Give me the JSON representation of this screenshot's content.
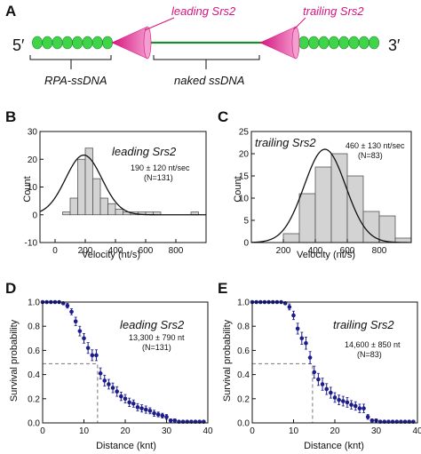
{
  "colors": {
    "rpa": "#3fd44a",
    "rpa_edge": "#1f8a2a",
    "motor": "#d6157f",
    "motor_light": "#f39fd0",
    "ssdna": "#1e8c2d",
    "bar_fill": "#d3d3d3",
    "marker": "#1c1c8c",
    "text": "#111111"
  },
  "panel_a": {
    "letter": "A",
    "five_prime": "5′",
    "three_prime": "3′",
    "leading_label": "leading Srs2",
    "trailing_label": "trailing Srs2",
    "rpa_label": "RPA-ssDNA",
    "naked_label": "naked ssDNA"
  },
  "chart_data": [
    {
      "id": "B",
      "letter": "B",
      "type": "bar",
      "xlabel": "Velocity (nt/s)",
      "ylabel": "Count",
      "xlim": [
        -100,
        1000
      ],
      "ylim": [
        -10,
        30
      ],
      "xticks": [
        0,
        200,
        400,
        600,
        800
      ],
      "yticks": [
        -10,
        0,
        10,
        20,
        30
      ],
      "bin_width": 50,
      "bins": [
        {
          "x0": 50,
          "count": 1
        },
        {
          "x0": 100,
          "count": 6
        },
        {
          "x0": 150,
          "count": 20
        },
        {
          "x0": 200,
          "count": 24
        },
        {
          "x0": 250,
          "count": 13
        },
        {
          "x0": 300,
          "count": 6
        },
        {
          "x0": 350,
          "count": 4
        },
        {
          "x0": 400,
          "count": 2
        },
        {
          "x0": 450,
          "count": 1
        },
        {
          "x0": 500,
          "count": 1
        },
        {
          "x0": 550,
          "count": 1
        },
        {
          "x0": 600,
          "count": 1
        },
        {
          "x0": 650,
          "count": 1
        },
        {
          "x0": 900,
          "count": 1
        }
      ],
      "fit": {
        "mean": 190,
        "sd": 120,
        "amplitude": 21.5
      },
      "series_label": "leading Srs2",
      "annotation_1": "190 ± 120 nt/sec",
      "annotation_2": "(N=131)"
    },
    {
      "id": "C",
      "letter": "C",
      "type": "bar",
      "xlabel": "Velocity (nt/s)",
      "ylabel": "Count",
      "xlim": [
        0,
        1000
      ],
      "ylim": [
        0,
        25
      ],
      "xticks": [
        200,
        400,
        600,
        800
      ],
      "yticks": [
        0,
        5,
        10,
        15,
        20,
        25
      ],
      "bin_width": 100,
      "bins": [
        {
          "x0": 200,
          "count": 2
        },
        {
          "x0": 300,
          "count": 11
        },
        {
          "x0": 400,
          "count": 17
        },
        {
          "x0": 500,
          "count": 20
        },
        {
          "x0": 600,
          "count": 15
        },
        {
          "x0": 700,
          "count": 7
        },
        {
          "x0": 800,
          "count": 6
        },
        {
          "x0": 900,
          "count": 1
        }
      ],
      "fit": {
        "mean": 460,
        "sd": 130,
        "amplitude": 21
      },
      "series_label": "trailing Srs2",
      "annotation_1": "460 ± 130 nt/sec",
      "annotation_2": "(N=83)"
    },
    {
      "id": "D",
      "letter": "D",
      "type": "scatter",
      "xlabel": "Distance (knt)",
      "ylabel": "Survival probability",
      "xlim": [
        0,
        40
      ],
      "ylim": [
        0,
        1.0
      ],
      "xticks": [
        0,
        10,
        20,
        30,
        40
      ],
      "yticks": [
        0.0,
        0.2,
        0.4,
        0.6,
        0.8,
        1.0
      ],
      "halfpoint": {
        "x": 13.3,
        "y": 0.49
      },
      "x": [
        0,
        1,
        2,
        3,
        4,
        5,
        6,
        7,
        8,
        9,
        10,
        11,
        12,
        13,
        14,
        15,
        16,
        17,
        18,
        19,
        20,
        21,
        22,
        23,
        24,
        25,
        26,
        27,
        28,
        29,
        30,
        31,
        32,
        33,
        34,
        35,
        36,
        37,
        38,
        39
      ],
      "y": [
        1.0,
        1.0,
        1.0,
        1.0,
        1.0,
        0.99,
        0.97,
        0.92,
        0.84,
        0.76,
        0.7,
        0.62,
        0.56,
        0.56,
        0.41,
        0.35,
        0.32,
        0.29,
        0.26,
        0.22,
        0.2,
        0.17,
        0.16,
        0.13,
        0.12,
        0.11,
        0.1,
        0.08,
        0.07,
        0.06,
        0.05,
        0.02,
        0.02,
        0.01,
        0.01,
        0.01,
        0.01,
        0.01,
        0.01,
        0.01
      ],
      "err": [
        0,
        0,
        0,
        0,
        0,
        0.01,
        0.02,
        0.025,
        0.035,
        0.04,
        0.04,
        0.045,
        0.045,
        0.045,
        0.045,
        0.045,
        0.04,
        0.04,
        0.04,
        0.035,
        0.035,
        0.035,
        0.03,
        0.03,
        0.03,
        0.03,
        0.025,
        0.025,
        0.02,
        0.02,
        0.02,
        0.012,
        0.012,
        0.008,
        0.008,
        0.008,
        0.008,
        0.008,
        0.008,
        0.008
      ],
      "series_label": "leading Srs2",
      "annotation_1": "13,300 ± 790 nt",
      "annotation_2": "(N=131)"
    },
    {
      "id": "E",
      "letter": "E",
      "type": "scatter",
      "xlabel": "Distance (knt)",
      "ylabel": "Survival probability",
      "xlim": [
        0,
        40
      ],
      "ylim": [
        0,
        1.0
      ],
      "xticks": [
        0,
        10,
        20,
        30,
        40
      ],
      "yticks": [
        0.0,
        0.2,
        0.4,
        0.6,
        0.8,
        1.0
      ],
      "halfpoint": {
        "x": 14.6,
        "y": 0.49
      },
      "x": [
        0,
        1,
        2,
        3,
        4,
        5,
        6,
        7,
        8,
        9,
        10,
        11,
        12,
        13,
        14,
        15,
        16,
        17,
        18,
        19,
        20,
        21,
        22,
        23,
        24,
        25,
        26,
        27,
        28,
        29,
        30,
        31,
        32,
        33,
        34,
        35,
        36,
        37,
        38,
        39
      ],
      "y": [
        1.0,
        1.0,
        1.0,
        1.0,
        1.0,
        1.0,
        1.0,
        1.0,
        0.99,
        0.96,
        0.89,
        0.78,
        0.7,
        0.66,
        0.54,
        0.42,
        0.36,
        0.32,
        0.28,
        0.25,
        0.21,
        0.19,
        0.18,
        0.17,
        0.15,
        0.14,
        0.12,
        0.12,
        0.05,
        0.02,
        0.02,
        0.01,
        0.01,
        0.01,
        0.01,
        0.01,
        0.01,
        0.01,
        0.01,
        0.01
      ],
      "err": [
        0,
        0,
        0,
        0,
        0,
        0,
        0,
        0,
        0.01,
        0.025,
        0.035,
        0.045,
        0.05,
        0.05,
        0.05,
        0.05,
        0.05,
        0.05,
        0.045,
        0.045,
        0.04,
        0.04,
        0.04,
        0.04,
        0.035,
        0.035,
        0.035,
        0.035,
        0.02,
        0.012,
        0.012,
        0.008,
        0.008,
        0.008,
        0.008,
        0.008,
        0.008,
        0.008,
        0.008,
        0.008
      ],
      "series_label": "trailing Srs2",
      "annotation_1": "14,600 ± 850 nt",
      "annotation_2": "(N=83)"
    }
  ]
}
